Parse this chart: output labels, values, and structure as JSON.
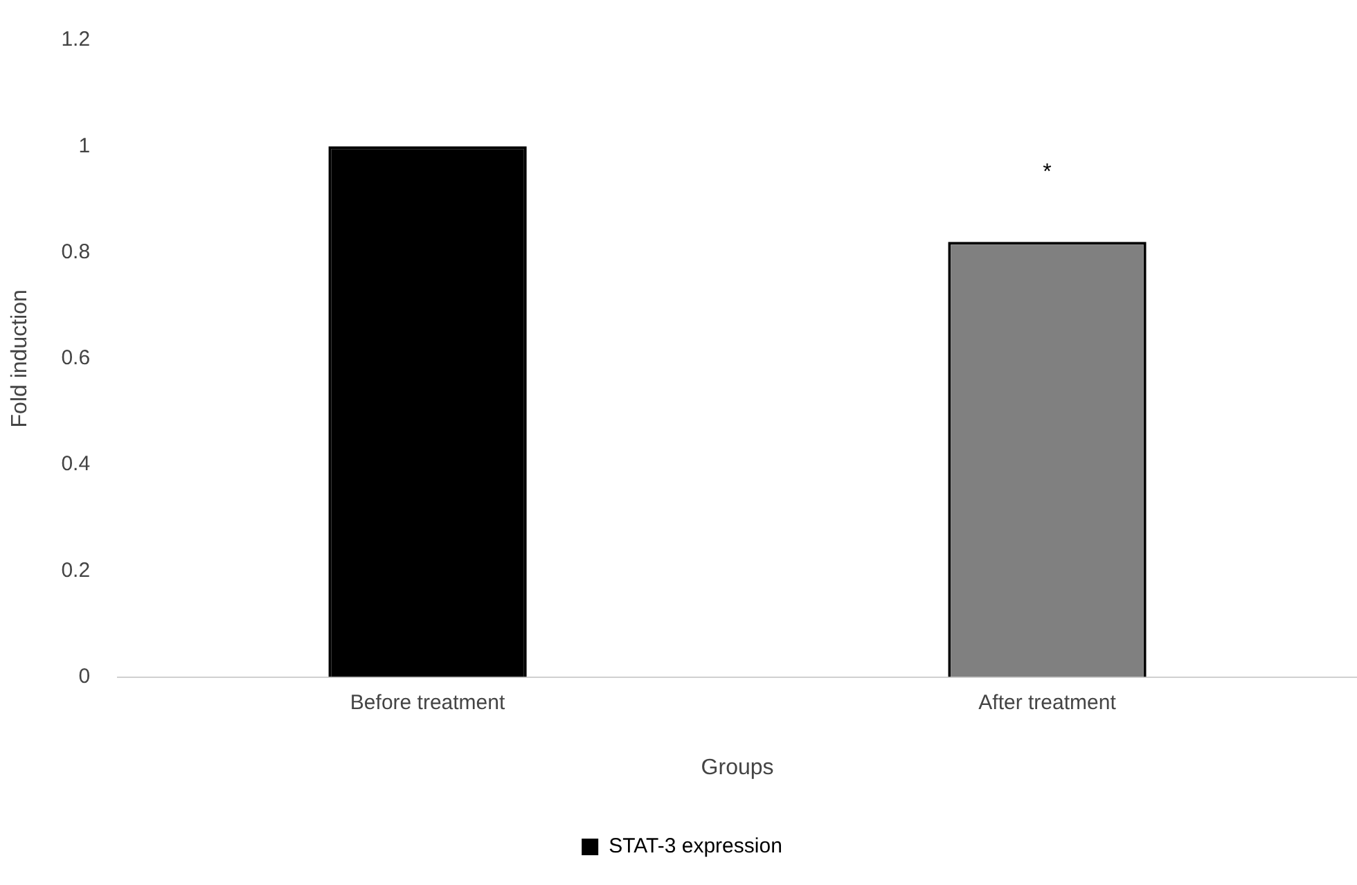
{
  "chart_data": {
    "type": "bar",
    "xlabel": "Groups",
    "ylabel": "Fold induction",
    "categories": [
      "Before treatment",
      "After treatment"
    ],
    "series": [
      {
        "name": "STAT-3 expression",
        "color": "#000000",
        "colors": [
          "#000000",
          "#808080"
        ],
        "values": [
          1,
          0.82
        ]
      }
    ],
    "ylim": [
      0,
      1.2
    ],
    "yticks": [
      0,
      0.2,
      0.4,
      0.6,
      0.8,
      1,
      1.2
    ],
    "grid": false,
    "legend": "bottom",
    "annotations": [
      "*"
    ]
  }
}
